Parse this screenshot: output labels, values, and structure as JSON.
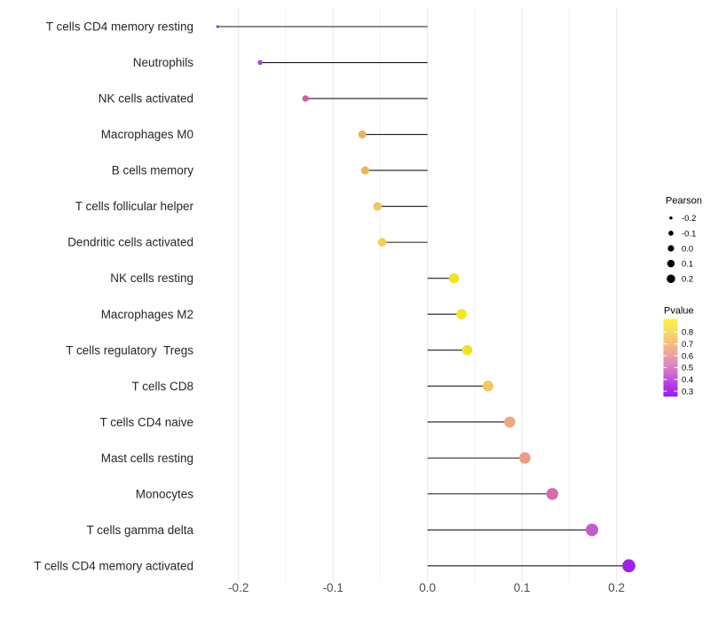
{
  "chart_data": {
    "type": "lollipop",
    "orientation": "horizontal",
    "title": "",
    "xlabel": "",
    "ylabel": "",
    "grid": "vertical major+minor, light gray, no axis lines",
    "xlim": [
      -0.235,
      0.22
    ],
    "x_ticks": [
      {
        "value": -0.2,
        "label": "-0.2"
      },
      {
        "value": -0.1,
        "label": "-0.1"
      },
      {
        "value": 0.0,
        "label": "0.0"
      },
      {
        "value": 0.1,
        "label": "0.1"
      },
      {
        "value": 0.2,
        "label": "0.2"
      }
    ],
    "x_minor_ticks": [
      -0.15,
      -0.05,
      0.05,
      0.15
    ],
    "points": [
      {
        "label": "T cells CD4 memory resting",
        "pearson": -0.222,
        "pvalue": 0.32,
        "color": "#9134cb"
      },
      {
        "label": "Neutrophils",
        "pearson": -0.177,
        "pvalue": 0.35,
        "color": "#a843cd"
      },
      {
        "label": "NK cells activated",
        "pearson": -0.129,
        "pvalue": 0.47,
        "color": "#c9639f"
      },
      {
        "label": "Macrophages M0",
        "pearson": -0.069,
        "pvalue": 0.68,
        "color": "#eeb15c"
      },
      {
        "label": "B cells memory",
        "pearson": -0.066,
        "pvalue": 0.68,
        "color": "#eeb45c"
      },
      {
        "label": "T cells follicular helper",
        "pearson": -0.053,
        "pvalue": 0.71,
        "color": "#f2c55f"
      },
      {
        "label": "Dendritic cells activated",
        "pearson": -0.048,
        "pvalue": 0.74,
        "color": "#f3cf53"
      },
      {
        "label": "NK cells resting",
        "pearson": 0.028,
        "pvalue": 0.86,
        "color": "#f2e41c"
      },
      {
        "label": "Macrophages M2",
        "pearson": 0.036,
        "pvalue": 0.87,
        "color": "#f4e61a"
      },
      {
        "label": "T cells regulatory  Tregs",
        "pearson": 0.042,
        "pvalue": 0.85,
        "color": "#f3e126"
      },
      {
        "label": "T cells CD8",
        "pearson": 0.064,
        "pvalue": 0.72,
        "color": "#f0c863"
      },
      {
        "label": "T cells CD4 naive",
        "pearson": 0.087,
        "pvalue": 0.64,
        "color": "#eda87d"
      },
      {
        "label": "Mast cells resting",
        "pearson": 0.103,
        "pvalue": 0.6,
        "color": "#ec9c87"
      },
      {
        "label": "Monocytes",
        "pearson": 0.132,
        "pvalue": 0.46,
        "color": "#d66bb0"
      },
      {
        "label": "T cells gamma delta",
        "pearson": 0.174,
        "pvalue": 0.4,
        "color": "#c45ccc"
      },
      {
        "label": "T cells CD4 memory activated",
        "pearson": 0.213,
        "pvalue": 0.28,
        "color": "#9d23e6"
      }
    ],
    "legends": {
      "size": {
        "title": "Pearson",
        "entries": [
          {
            "value": -0.2,
            "label": "-0.2"
          },
          {
            "value": -0.1,
            "label": "-0.1"
          },
          {
            "value": 0.0,
            "label": "0.0"
          },
          {
            "value": 0.1,
            "label": "0.1"
          },
          {
            "value": 0.2,
            "label": "0.2"
          }
        ],
        "dot_color": "#000000"
      },
      "color": {
        "title": "Pvalue",
        "entries": [
          {
            "value": 0.8,
            "label": "0.8"
          },
          {
            "value": 0.7,
            "label": "0.7"
          },
          {
            "value": 0.6,
            "label": "0.6"
          },
          {
            "value": 0.5,
            "label": "0.5"
          },
          {
            "value": 0.4,
            "label": "0.4"
          },
          {
            "value": 0.3,
            "label": "0.3"
          }
        ],
        "bar_range": [
          0.26,
          0.9
        ],
        "gradient": [
          {
            "offset": 0.0,
            "color": "#fbf23c"
          },
          {
            "offset": 0.14,
            "color": "#f8df5f"
          },
          {
            "offset": 0.28,
            "color": "#f4c47b"
          },
          {
            "offset": 0.42,
            "color": "#efab92"
          },
          {
            "offset": 0.56,
            "color": "#e18cba"
          },
          {
            "offset": 0.7,
            "color": "#cf6cd0"
          },
          {
            "offset": 0.84,
            "color": "#b53ee3"
          },
          {
            "offset": 1.0,
            "color": "#9c19f0"
          }
        ]
      }
    },
    "colors": {
      "stem": "#1a1a1a",
      "grid_major": "#e6e6e6",
      "grid_minor": "#f2f2f2",
      "axis_text": "#4d4d4d",
      "category_text": "#262626",
      "background": "#ffffff"
    }
  }
}
